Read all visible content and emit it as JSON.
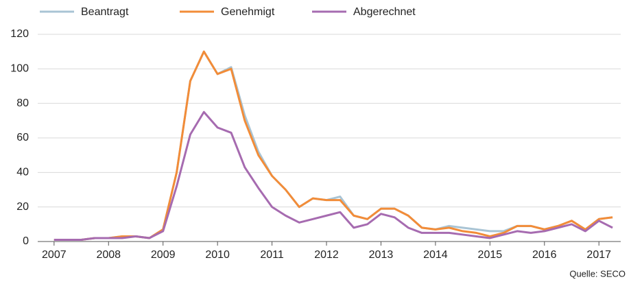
{
  "chart_data": {
    "type": "line",
    "source": "Quelle: SECO",
    "x": [
      2007,
      2007.25,
      2007.5,
      2007.75,
      2008,
      2008.25,
      2008.5,
      2008.75,
      2009,
      2009.25,
      2009.5,
      2009.75,
      2010,
      2010.25,
      2010.5,
      2010.75,
      2011,
      2011.25,
      2011.5,
      2011.75,
      2012,
      2012.25,
      2012.5,
      2012.75,
      2013,
      2013.25,
      2013.5,
      2013.75,
      2014,
      2014.25,
      2014.5,
      2014.75,
      2015,
      2015.25,
      2015.5,
      2015.75,
      2016,
      2016.25,
      2016.5,
      2016.75,
      2017,
      2017.25
    ],
    "series": [
      {
        "name": "Beantragt",
        "color": "#a9c4d4",
        "values": [
          1,
          1,
          1,
          2,
          2,
          3,
          3,
          2,
          7,
          40,
          93,
          110,
          97,
          101,
          73,
          52,
          38,
          30,
          20,
          25,
          24,
          26,
          15,
          13,
          19,
          19,
          15,
          8,
          7,
          9,
          8,
          7,
          6,
          6,
          9,
          9,
          7,
          9,
          12,
          7,
          13,
          14
        ]
      },
      {
        "name": "Genehmigt",
        "color": "#f28c38",
        "values": [
          1,
          1,
          1,
          2,
          2,
          3,
          3,
          2,
          7,
          40,
          93,
          110,
          97,
          100,
          70,
          50,
          38,
          30,
          20,
          25,
          24,
          24,
          15,
          13,
          19,
          19,
          15,
          8,
          7,
          8,
          6,
          5,
          3,
          5,
          9,
          9,
          7,
          9,
          12,
          7,
          13,
          14
        ]
      },
      {
        "name": "Abgerechnet",
        "color": "#a66bb0",
        "values": [
          1,
          1,
          1,
          2,
          2,
          2,
          3,
          2,
          6,
          32,
          62,
          75,
          66,
          63,
          43,
          31,
          20,
          15,
          11,
          13,
          15,
          17,
          8,
          10,
          16,
          14,
          8,
          5,
          5,
          5,
          4,
          3,
          2,
          4,
          6,
          5,
          6,
          8,
          10,
          6,
          12,
          8
        ]
      }
    ],
    "xlim": [
      2006.7,
      2017.4
    ],
    "xticks": [
      2007,
      2008,
      2009,
      2010,
      2011,
      2012,
      2013,
      2014,
      2015,
      2016,
      2017
    ],
    "ylim": [
      0,
      120
    ],
    "yticks": [
      0,
      20,
      40,
      60,
      80,
      100,
      120
    ],
    "grid": true
  }
}
